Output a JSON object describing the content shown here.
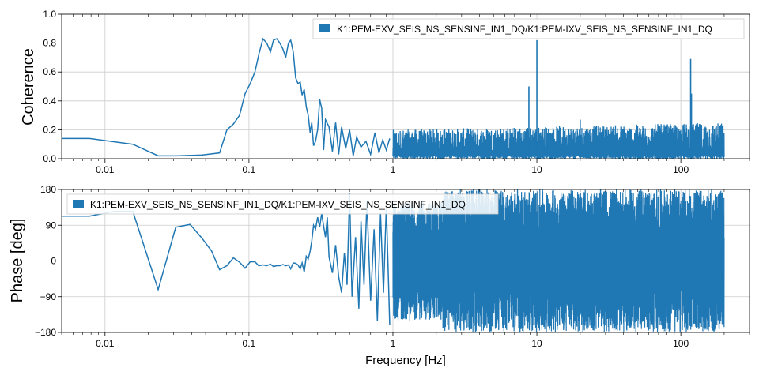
{
  "chart_data": [
    {
      "type": "line",
      "xscale": "log",
      "xlim": [
        0.005,
        300
      ],
      "ylim": [
        0,
        1
      ],
      "xlabel": "",
      "ylabel": "Coherence",
      "grid": true,
      "legend_position": "top-right",
      "color": "#1f77b4",
      "x_ticks": [
        0.01,
        0.1,
        1,
        10,
        100
      ],
      "x_tick_labels": [
        "0.01",
        "0.1",
        "1",
        "10",
        "100"
      ],
      "y_ticks": [
        0,
        0.2,
        0.4,
        0.6,
        0.8,
        1.0
      ],
      "y_tick_labels": [
        "0.0",
        "0.2",
        "0.4",
        "0.6",
        "0.8",
        "1.0"
      ],
      "series": [
        {
          "name": "K1:PEM-EXV_SEIS_NS_SENSINF_IN1_DQ/K1:PEM-IXV_SEIS_NS_SENSINF_IN1_DQ",
          "x": [
            0.005,
            0.0078,
            0.0156,
            0.0234,
            0.031,
            0.047,
            0.0625,
            0.0703,
            0.078,
            0.086,
            0.094,
            0.102,
            0.11,
            0.117,
            0.125,
            0.133,
            0.141,
            0.148,
            0.156,
            0.164,
            0.172,
            0.18,
            0.188,
            0.195,
            0.203,
            0.211,
            0.219,
            0.227,
            0.234,
            0.242,
            0.25,
            0.258,
            0.266,
            0.273,
            0.281,
            0.29,
            0.3,
            0.31,
            0.32,
            0.33,
            0.34,
            0.36,
            0.38,
            0.4,
            0.42,
            0.44,
            0.47,
            0.5,
            0.53,
            0.56,
            0.6,
            0.65,
            0.7,
            0.75,
            0.8,
            0.85,
            0.9,
            0.95
          ],
          "y": [
            0.14,
            0.14,
            0.1,
            0.02,
            0.02,
            0.025,
            0.04,
            0.2,
            0.24,
            0.3,
            0.45,
            0.52,
            0.6,
            0.72,
            0.83,
            0.8,
            0.74,
            0.82,
            0.83,
            0.8,
            0.76,
            0.7,
            0.8,
            0.82,
            0.74,
            0.56,
            0.52,
            0.53,
            0.44,
            0.48,
            0.36,
            0.3,
            0.18,
            0.25,
            0.09,
            0.12,
            0.2,
            0.41,
            0.35,
            0.06,
            0.27,
            0.22,
            0.05,
            0.25,
            0.03,
            0.22,
            0.07,
            0.2,
            0.02,
            0.15,
            0.08,
            0.12,
            0.03,
            0.18,
            0.04,
            0.13,
            0.06,
            0.14
          ],
          "noise_band": {
            "x_start": 1.0,
            "x_end": 200,
            "min": 0.0,
            "max_low_freq": 0.2,
            "max_high_freq": 0.25
          },
          "peaks": [
            {
              "x": 8.8,
              "y": 0.5
            },
            {
              "x": 10.0,
              "y": 0.82
            },
            {
              "x": 20.0,
              "y": 0.27
            },
            {
              "x": 117.0,
              "y": 0.69
            },
            {
              "x": 118.5,
              "y": 0.45
            }
          ]
        }
      ]
    },
    {
      "type": "line",
      "xscale": "log",
      "xlim": [
        0.005,
        300
      ],
      "ylim": [
        -180,
        180
      ],
      "xlabel": "Frequency [Hz]",
      "ylabel": "Phase [deg]",
      "grid": true,
      "legend_position": "top-left",
      "color": "#1f77b4",
      "x_ticks": [
        0.01,
        0.1,
        1,
        10,
        100
      ],
      "x_tick_labels": [
        "0.01",
        "0.1",
        "1",
        "10",
        "100"
      ],
      "y_ticks": [
        -180,
        -90,
        0,
        90,
        180
      ],
      "y_tick_labels": [
        "−180",
        "−90",
        "0",
        "90",
        "180"
      ],
      "series": [
        {
          "name": "K1:PEM-EXV_SEIS_NS_SENSINF_IN1_DQ/K1:PEM-IXV_SEIS_NS_SENSINF_IN1_DQ",
          "x": [
            0.005,
            0.0078,
            0.0117,
            0.0156,
            0.0234,
            0.031,
            0.039,
            0.047,
            0.055,
            0.0625,
            0.0703,
            0.078,
            0.086,
            0.094,
            0.102,
            0.11,
            0.117,
            0.125,
            0.133,
            0.141,
            0.148,
            0.156,
            0.164,
            0.172,
            0.18,
            0.188,
            0.195,
            0.203,
            0.211,
            0.219,
            0.227,
            0.234,
            0.242,
            0.25,
            0.258,
            0.266,
            0.273,
            0.281,
            0.29,
            0.3,
            0.31,
            0.32,
            0.33,
            0.34,
            0.35,
            0.36,
            0.38,
            0.4,
            0.42,
            0.44,
            0.46,
            0.48,
            0.5,
            0.52,
            0.55,
            0.58,
            0.6,
            0.63,
            0.66,
            0.7,
            0.74,
            0.78,
            0.82,
            0.86,
            0.9,
            0.95
          ],
          "y": [
            113,
            113,
            125,
            125,
            -72,
            85,
            92,
            58,
            25,
            -22,
            -12,
            8,
            -3,
            -18,
            -2,
            -2,
            -12,
            -10,
            -12,
            -8,
            -14,
            -12,
            -12,
            -9,
            -12,
            -10,
            -20,
            -5,
            -6,
            -10,
            -20,
            -5,
            -28,
            12,
            5,
            25,
            50,
            90,
            80,
            110,
            85,
            120,
            88,
            60,
            110,
            10,
            -30,
            40,
            -40,
            -80,
            20,
            -60,
            170,
            -90,
            60,
            -120,
            100,
            -60,
            150,
            -100,
            80,
            -150,
            120,
            -80,
            140,
            -160
          ],
          "noise_band": {
            "x_start": 1.0,
            "x_end": 200,
            "min": -180,
            "max": 180
          }
        }
      ]
    }
  ]
}
